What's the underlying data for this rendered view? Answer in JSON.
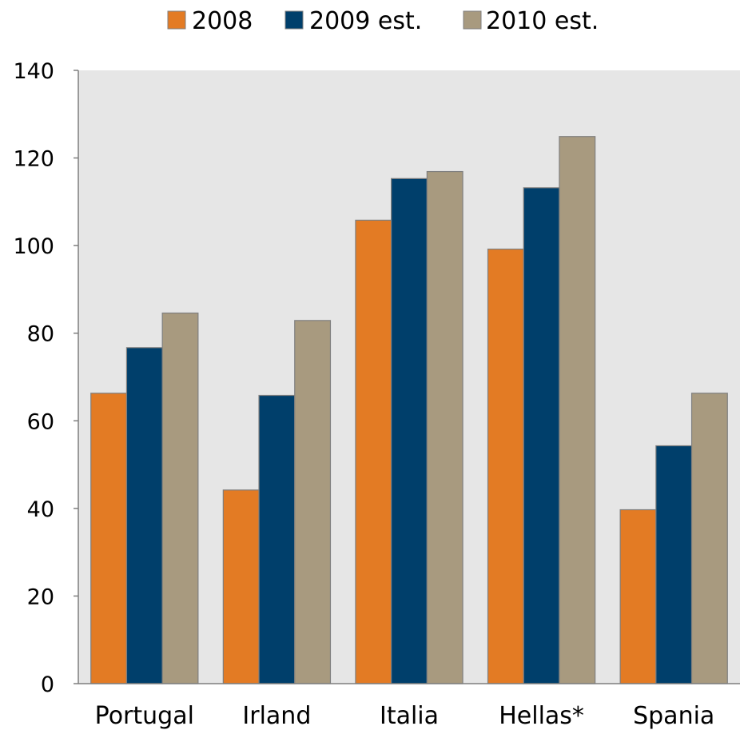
{
  "chart_data": {
    "type": "bar",
    "categories": [
      "Portugal",
      "Irland",
      "Italia",
      "Hellas*",
      "Spania"
    ],
    "series": [
      {
        "name": "2008",
        "color": "#E37B24",
        "values": [
          66.3,
          44.2,
          105.8,
          99.2,
          39.7
        ]
      },
      {
        "name": "2009 est.",
        "color": "#003F6B",
        "values": [
          76.7,
          65.8,
          115.3,
          113.2,
          54.3
        ]
      },
      {
        "name": "2010 est.",
        "color": "#A89A7F",
        "values": [
          84.6,
          82.9,
          116.9,
          124.9,
          66.3
        ]
      }
    ],
    "y_ticks": [
      "0",
      "20",
      "40",
      "60",
      "80",
      "100",
      "120",
      "140"
    ],
    "ylim": [
      0,
      140
    ],
    "legend_position": "top-center",
    "grid": false,
    "plot_background": "#E6E6E6",
    "bar_outline_color": "#7F7F7F"
  }
}
